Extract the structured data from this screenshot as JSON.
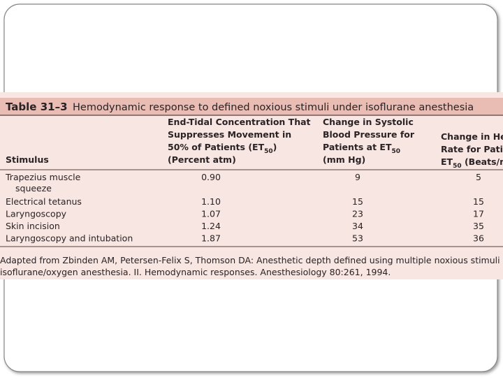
{
  "table": {
    "title": {
      "label": "Table 31–3",
      "text": "Hemodynamic response to defined noxious stimuli under isoflurane anesthesia"
    },
    "columns": [
      {
        "lines": [
          {
            "text": "Stimulus"
          }
        ]
      },
      {
        "lines": [
          {
            "text": "End-Tidal Concentration That"
          },
          {
            "text": "Suppresses Movement in"
          },
          {
            "text": "50% of Patients (ET",
            "sub": "50",
            "tail": ")"
          },
          {
            "text": "(Percent atm)"
          }
        ]
      },
      {
        "lines": [
          {
            "text": "Change in Systolic"
          },
          {
            "text": "Blood Pressure for"
          },
          {
            "text": "Patients at ET",
            "sub": "50"
          },
          {
            "text": "(mm Hg)"
          }
        ]
      },
      {
        "lines": [
          {
            "text": "Change in Hea"
          },
          {
            "text": "Rate for Patie"
          },
          {
            "text": "ET",
            "sub": "50",
            "tail": " (Beats/mi"
          }
        ]
      }
    ],
    "rows": [
      {
        "stimulus": [
          "Trapezius muscle",
          "squeeze"
        ],
        "cells": [
          "0.90",
          "9",
          "5"
        ]
      },
      {
        "stimulus": [
          "Electrical tetanus"
        ],
        "cells": [
          "1.10",
          "15",
          "15"
        ]
      },
      {
        "stimulus": [
          "Laryngoscopy"
        ],
        "cells": [
          "1.07",
          "23",
          "17"
        ]
      },
      {
        "stimulus": [
          "Skin incision"
        ],
        "cells": [
          "1.24",
          "34",
          "35"
        ]
      },
      {
        "stimulus": [
          "Laryngoscopy and intubation"
        ],
        "cells": [
          "1.87",
          "53",
          "36"
        ]
      }
    ],
    "footnote": [
      "Adapted from Zbinden AM, Petersen-Felix S, Thomson DA: Anesthetic depth defined using multiple noxious stimuli dur",
      "isoflurane/oxygen anesthesia. II. Hemodynamic responses. Anesthesiology 80:261, 1994."
    ]
  }
}
